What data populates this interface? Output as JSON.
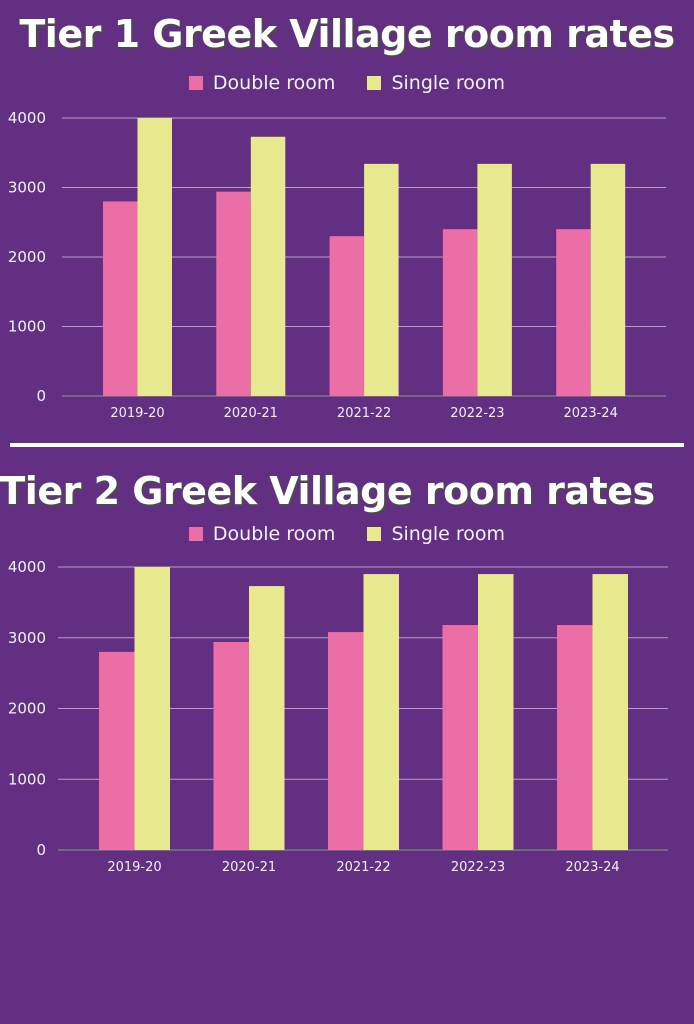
{
  "colors": {
    "background": "#632f82",
    "double_room": "#ec6ea7",
    "single_room": "#e8e88f",
    "grid": "#b79dc6",
    "axis": "#7a7a7a"
  },
  "legend": {
    "double": "Double room",
    "single": "Single room"
  },
  "chart_data": [
    {
      "type": "bar",
      "title": "Tier 1 Greek Village room rates",
      "categories": [
        "2019-20",
        "2020-21",
        "2021-22",
        "2022-23",
        "2023-24"
      ],
      "series": [
        {
          "name": "Double room",
          "values": [
            2800,
            2940,
            2300,
            2400,
            2400
          ]
        },
        {
          "name": "Single room",
          "values": [
            4000,
            3730,
            3340,
            3340,
            3340
          ]
        }
      ],
      "yticks": [
        0,
        1000,
        2000,
        3000,
        4000
      ],
      "ylim": [
        0,
        4000
      ],
      "grid": true,
      "legend_position": "top"
    },
    {
      "type": "bar",
      "title": "Tier 2 Greek Village room rates",
      "categories": [
        "2019-20",
        "2020-21",
        "2021-22",
        "2022-23",
        "2023-24"
      ],
      "series": [
        {
          "name": "Double room",
          "values": [
            2800,
            2940,
            3080,
            3180,
            3180
          ]
        },
        {
          "name": "Single room",
          "values": [
            4000,
            3730,
            3900,
            3900,
            3900
          ]
        }
      ],
      "yticks": [
        0,
        1000,
        2000,
        3000,
        4000
      ],
      "ylim": [
        0,
        4000
      ],
      "grid": true,
      "legend_position": "top"
    }
  ]
}
